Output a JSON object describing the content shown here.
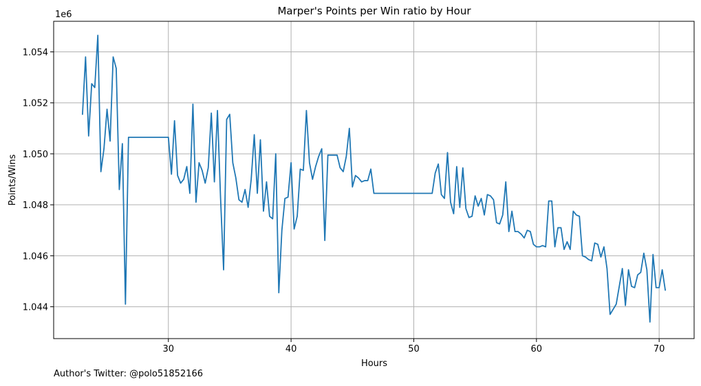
{
  "chart_data": {
    "type": "line",
    "title": "Marper's Points per Win ratio by Hour",
    "xlabel": "Hours",
    "ylabel": "Points/Wins",
    "y_scale_label": "1e6",
    "xlim": [
      20.65,
      72.85
    ],
    "ylim": [
      1042.75,
      1055.2
    ],
    "grid": true,
    "line_color": "#1f77b4",
    "x_ticks": [
      30,
      40,
      50,
      60,
      70
    ],
    "x_tick_labels": [
      "30",
      "40",
      "50",
      "60",
      "70"
    ],
    "y_ticks": [
      1044,
      1046,
      1048,
      1050,
      1052,
      1054
    ],
    "y_tick_labels": [
      "1.044",
      "1.046",
      "1.048",
      "1.050",
      "1.052",
      "1.054"
    ],
    "series": [
      {
        "x": [
          23.0,
          23.25,
          23.5,
          23.75,
          24.0,
          24.25,
          24.5,
          24.75,
          25.0,
          25.25,
          25.5,
          25.75,
          26.0,
          26.25,
          26.5,
          26.75,
          27.0,
          28.0,
          29.0,
          30.0,
          30.25,
          30.5,
          30.75,
          31.0,
          31.25,
          31.5,
          31.75,
          32.0,
          32.25,
          32.5,
          32.75,
          33.0,
          33.25,
          33.5,
          33.75,
          34.0,
          34.25,
          34.5,
          34.75,
          35.0,
          35.25,
          35.5,
          35.75,
          36.0,
          36.25,
          36.5,
          36.75,
          37.0,
          37.25,
          37.5,
          37.75,
          38.0,
          38.25,
          38.5,
          38.75,
          39.0,
          39.25,
          39.5,
          39.75,
          40.0,
          40.25,
          40.5,
          40.75,
          41.0,
          41.25,
          41.5,
          41.75,
          42.0,
          42.25,
          42.5,
          42.75,
          43.0,
          43.25,
          43.5,
          43.75,
          44.0,
          44.25,
          44.5,
          44.75,
          45.0,
          45.25,
          45.5,
          45.75,
          46.0,
          46.25,
          46.5,
          46.75,
          47.0,
          48.0,
          49.0,
          50.0,
          51.0,
          51.5,
          51.75,
          52.0,
          52.25,
          52.5,
          52.75,
          53.0,
          53.25,
          53.5,
          53.75,
          54.0,
          54.25,
          54.5,
          54.75,
          55.0,
          55.25,
          55.5,
          55.75,
          56.0,
          56.25,
          56.5,
          56.75,
          57.0,
          57.25,
          57.5,
          57.75,
          58.0,
          58.25,
          58.5,
          58.75,
          59.0,
          59.25,
          59.5,
          59.75,
          60.0,
          60.25,
          60.5,
          60.75,
          61.0,
          61.25,
          61.5,
          61.75,
          62.0,
          62.25,
          62.5,
          62.75,
          63.0,
          63.25,
          63.5,
          63.75,
          64.0,
          64.25,
          64.5,
          64.75,
          65.0,
          65.25,
          65.5,
          65.75,
          66.0,
          66.25,
          66.5,
          66.75,
          67.0,
          67.25,
          67.5,
          67.75,
          68.0,
          68.25,
          68.5,
          68.75,
          69.0,
          69.25,
          69.5,
          69.75,
          70.0,
          70.25,
          70.5
        ],
        "y": [
          1051.55,
          1053.8,
          1050.7,
          1052.75,
          1052.6,
          1054.65,
          1049.3,
          1050.2,
          1051.75,
          1050.5,
          1053.8,
          1053.35,
          1048.6,
          1050.4,
          1044.1,
          1050.65,
          1050.65,
          1050.65,
          1050.65,
          1050.65,
          1049.2,
          1051.3,
          1049.15,
          1048.85,
          1049.0,
          1049.5,
          1048.45,
          1051.95,
          1048.1,
          1049.65,
          1049.35,
          1048.85,
          1049.45,
          1051.6,
          1048.9,
          1051.7,
          1048.3,
          1045.45,
          1051.35,
          1051.55,
          1049.65,
          1049.05,
          1048.2,
          1048.1,
          1048.6,
          1047.9,
          1049.0,
          1050.75,
          1048.45,
          1050.55,
          1047.75,
          1048.9,
          1047.55,
          1047.45,
          1050.0,
          1044.55,
          1047.0,
          1048.25,
          1048.3,
          1049.65,
          1047.05,
          1047.55,
          1049.4,
          1049.35,
          1051.7,
          1049.65,
          1049.0,
          1049.5,
          1049.9,
          1050.2,
          1046.6,
          1049.95,
          1049.95,
          1049.95,
          1049.95,
          1049.45,
          1049.3,
          1049.9,
          1051.0,
          1048.7,
          1049.15,
          1049.05,
          1048.9,
          1048.95,
          1048.95,
          1049.4,
          1048.45,
          1048.45,
          1048.45,
          1048.45,
          1048.45,
          1048.45,
          1048.45,
          1049.25,
          1049.6,
          1048.4,
          1048.25,
          1050.05,
          1048.1,
          1047.65,
          1049.5,
          1047.9,
          1049.45,
          1047.85,
          1047.5,
          1047.55,
          1048.35,
          1047.95,
          1048.25,
          1047.6,
          1048.4,
          1048.35,
          1048.2,
          1047.3,
          1047.25,
          1047.6,
          1048.9,
          1046.95,
          1047.75,
          1046.95,
          1046.95,
          1046.85,
          1046.7,
          1047.0,
          1046.95,
          1046.45,
          1046.35,
          1046.35,
          1046.4,
          1046.35,
          1048.15,
          1048.15,
          1046.35,
          1047.1,
          1047.1,
          1046.25,
          1046.55,
          1046.25,
          1047.75,
          1047.6,
          1047.55,
          1046.0,
          1045.95,
          1045.85,
          1045.8,
          1046.5,
          1046.45,
          1045.95,
          1046.35,
          1045.5,
          1043.7,
          1043.9,
          1044.1,
          1044.8,
          1045.5,
          1044.05,
          1045.45,
          1044.8,
          1044.75,
          1045.25,
          1045.35,
          1046.1,
          1045.45,
          1043.4,
          1046.05,
          1044.75,
          1044.75,
          1045.45,
          1044.65
        ]
      }
    ]
  },
  "footer": {
    "author_text": "Author's Twitter: @polo51852166"
  }
}
